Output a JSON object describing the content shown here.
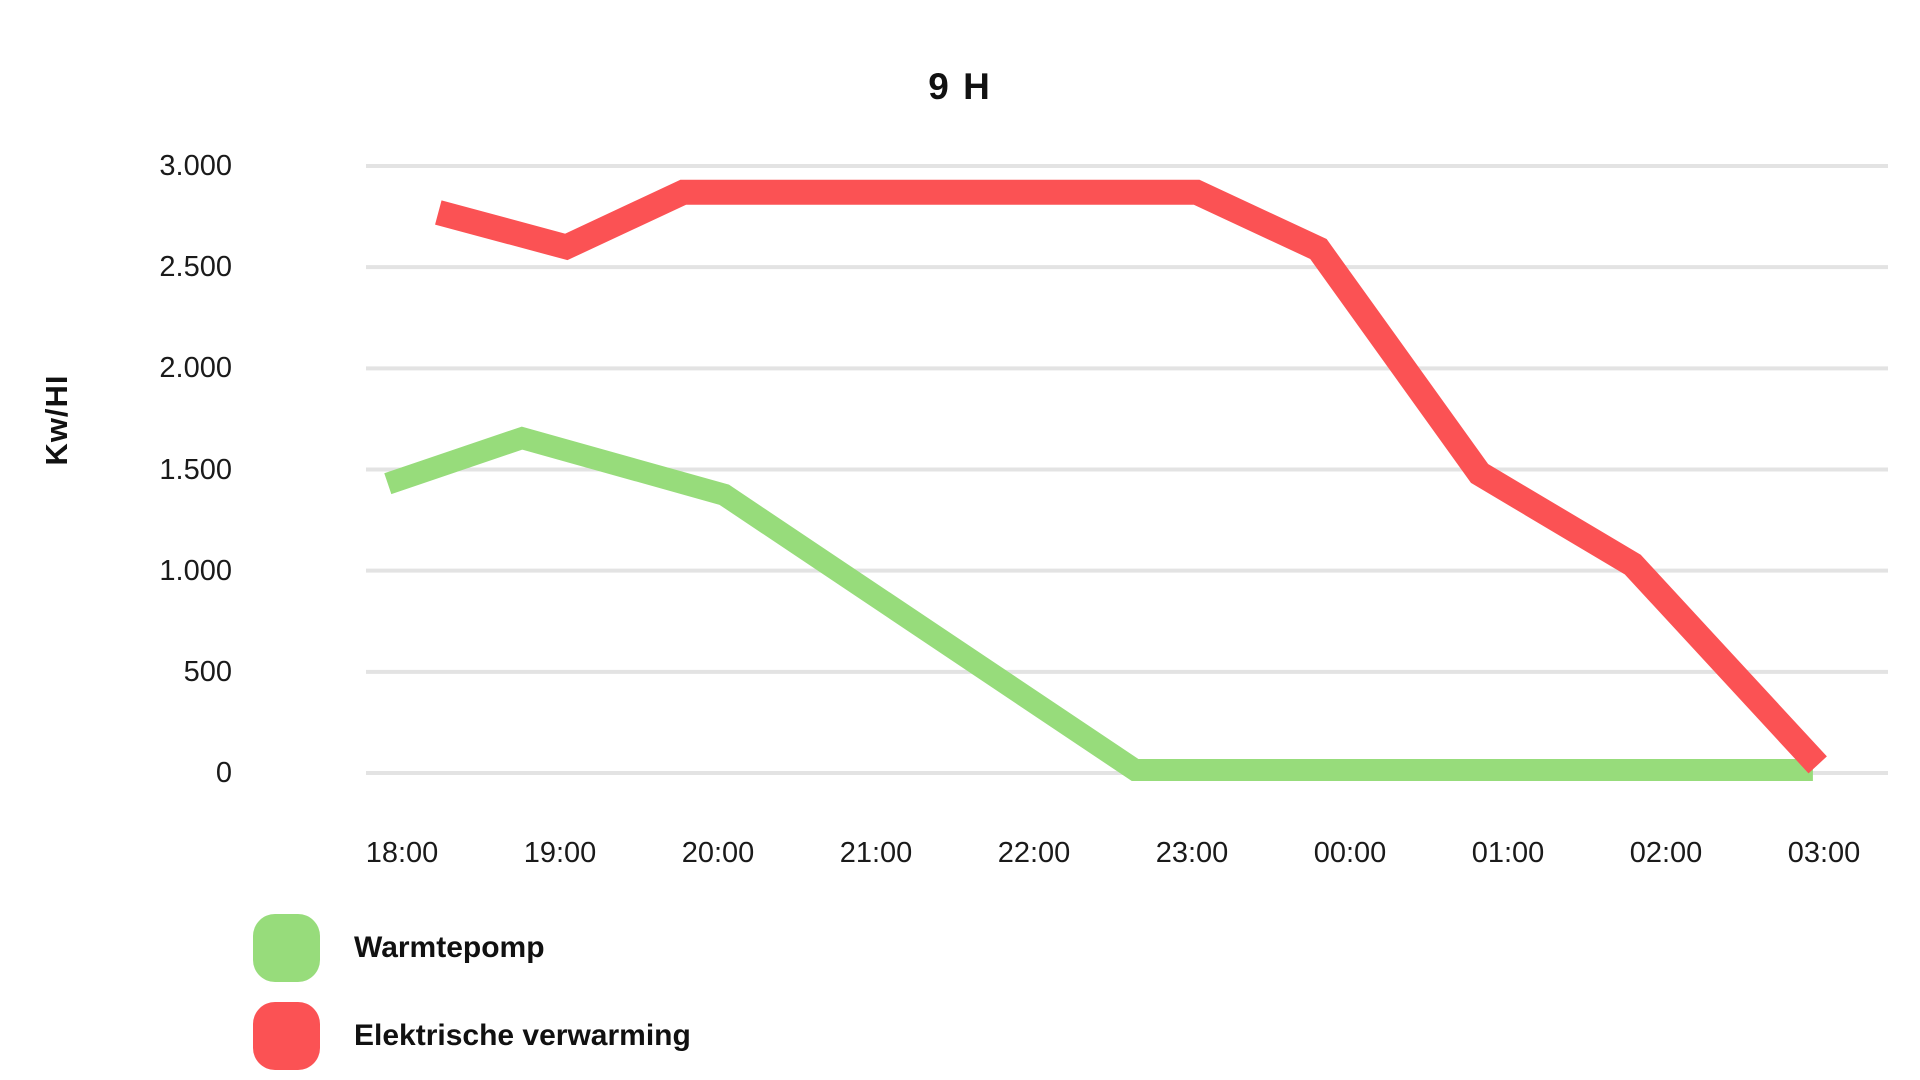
{
  "title": "9 H",
  "colors": {
    "background": "#FFFFFF",
    "grid": "#E3E3E3",
    "text": "#1A1A1A",
    "green_series": "#97DC7B",
    "red_series": "#FB5254"
  },
  "chart_data": {
    "type": "line",
    "title": "9 H",
    "xlabel": "",
    "ylabel": "Kw/HI",
    "ylim": [
      0,
      3000
    ],
    "grid": "horizontal-only",
    "legend_position": "bottom-left",
    "x_ticks": [
      "18:00",
      "19:00",
      "20:00",
      "21:00",
      "22:00",
      "23:00",
      "00:00",
      "01:00",
      "02:00",
      "03:00"
    ],
    "y_ticks": [
      {
        "label": "3.000",
        "value": 3000
      },
      {
        "label": "2.500",
        "value": 2500
      },
      {
        "label": "2.000",
        "value": 2000
      },
      {
        "label": "1.500",
        "value": 1500
      },
      {
        "label": "1.000",
        "value": 1000
      },
      {
        "label": "500",
        "value": 500
      },
      {
        "label": "0",
        "value": 0
      }
    ],
    "series": [
      {
        "name": "Warmtepomp",
        "color": "#97DC7B",
        "stroke_width": 22,
        "points": [
          {
            "time": "18:00",
            "hour_offset": -0.09,
            "value": 1430
          },
          {
            "time": "18:45",
            "hour_offset": 0.76,
            "value": 1655
          },
          {
            "time": "20:00",
            "hour_offset": 2.04,
            "value": 1375
          },
          {
            "time": "22:40",
            "hour_offset": 4.64,
            "value": 15
          },
          {
            "time": "02:55",
            "hour_offset": 8.93,
            "value": 15
          }
        ]
      },
      {
        "name": "Elektrische verwarming",
        "color": "#FB5254",
        "stroke_width": 25,
        "points": [
          {
            "time": "18:15",
            "hour_offset": 0.23,
            "value": 2770
          },
          {
            "time": "19:00",
            "hour_offset": 1.04,
            "value": 2600
          },
          {
            "time": "19:45",
            "hour_offset": 1.78,
            "value": 2870
          },
          {
            "time": "23:00",
            "hour_offset": 5.03,
            "value": 2870
          },
          {
            "time": "23:45",
            "hour_offset": 5.8,
            "value": 2590
          },
          {
            "time": "00:50",
            "hour_offset": 6.82,
            "value": 1480
          },
          {
            "time": "01:45",
            "hour_offset": 7.79,
            "value": 1030
          },
          {
            "time": "03:00",
            "hour_offset": 8.96,
            "value": 40
          }
        ]
      }
    ]
  }
}
